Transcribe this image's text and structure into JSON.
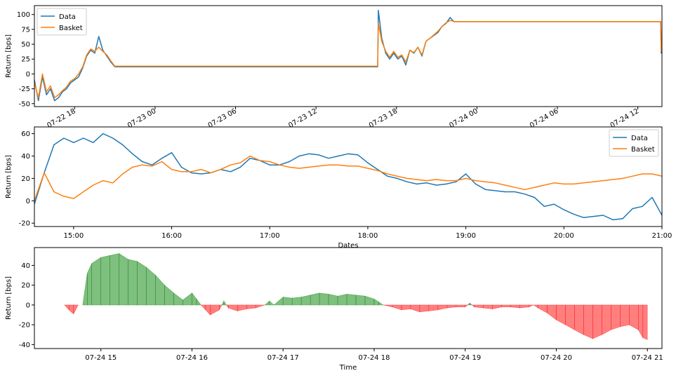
{
  "colors": {
    "data": "#1f77b4",
    "basket": "#ff7f0e",
    "positive": "#008000",
    "negative": "#ff0000"
  },
  "chart_data": [
    {
      "type": "line",
      "title": "",
      "xlabel": "",
      "ylabel": "Return [bps]",
      "x_unit": "hours from 07-22 15:00",
      "xlim": [
        0,
        46.8
      ],
      "ylim": [
        -55,
        115
      ],
      "yticks": [
        -50,
        -25,
        0,
        25,
        50,
        75,
        100
      ],
      "xticks": [
        {
          "v": 3,
          "label": "07-22 18"
        },
        {
          "v": 9,
          "label": "07-23 00"
        },
        {
          "v": 15,
          "label": "07-23 06"
        },
        {
          "v": 21,
          "label": "07-23 12"
        },
        {
          "v": 27,
          "label": "07-23 18"
        },
        {
          "v": 33,
          "label": "07-24 00"
        },
        {
          "v": 39,
          "label": "07-24 06"
        },
        {
          "v": 45,
          "label": "07-24 12"
        }
      ],
      "legend": "top-left",
      "series": [
        {
          "name": "Data",
          "key": "data",
          "x": [
            0,
            0.3,
            0.6,
            0.9,
            1.2,
            1.5,
            1.8,
            2.1,
            2.4,
            2.7,
            3.0,
            3.3,
            3.6,
            3.9,
            4.2,
            4.5,
            4.8,
            5.1,
            5.4,
            5.7,
            6.0,
            6.2,
            25.6,
            25.65,
            25.9,
            26.2,
            26.5,
            26.8,
            27.1,
            27.4,
            27.7,
            28.0,
            28.3,
            28.6,
            28.9,
            29.2,
            29.5,
            29.8,
            30.1,
            30.4,
            30.7,
            31.0,
            31.2,
            31.3,
            46.7,
            46.75,
            46.8
          ],
          "y": [
            -10,
            -45,
            -5,
            -35,
            -25,
            -45,
            -40,
            -30,
            -25,
            -15,
            -10,
            -5,
            10,
            30,
            40,
            35,
            63,
            40,
            30,
            20,
            12,
            12,
            12,
            107,
            60,
            35,
            25,
            35,
            25,
            30,
            15,
            40,
            35,
            45,
            30,
            55,
            60,
            65,
            70,
            80,
            85,
            95,
            90,
            88,
            88,
            35,
            40
          ]
        },
        {
          "name": "Basket",
          "key": "basket",
          "x": [
            0,
            0.3,
            0.6,
            0.9,
            1.2,
            1.5,
            1.8,
            2.1,
            2.4,
            2.7,
            3.0,
            3.3,
            3.6,
            3.9,
            4.2,
            4.5,
            4.8,
            5.1,
            5.4,
            5.7,
            6.0,
            6.2,
            25.6,
            25.65,
            25.9,
            26.2,
            26.5,
            26.8,
            27.1,
            27.4,
            27.7,
            28.0,
            28.3,
            28.6,
            28.9,
            29.2,
            29.5,
            29.8,
            30.1,
            30.4,
            30.7,
            31.0,
            31.2,
            31.3,
            46.7,
            46.75,
            46.8
          ],
          "y": [
            -15,
            -40,
            0,
            -30,
            -20,
            -40,
            -35,
            -28,
            -22,
            -12,
            -8,
            0,
            12,
            32,
            42,
            38,
            45,
            38,
            32,
            22,
            13,
            13,
            13,
            85,
            55,
            38,
            28,
            38,
            28,
            32,
            20,
            40,
            36,
            45,
            32,
            55,
            60,
            66,
            72,
            80,
            86,
            90,
            89,
            88,
            88,
            38,
            40
          ]
        }
      ]
    },
    {
      "type": "line",
      "title": "",
      "xlabel": "Dates",
      "ylabel": "Return [bps]",
      "x_unit": "hours of 07-24",
      "xlim": [
        14.6,
        21.0
      ],
      "ylim": [
        -23,
        66
      ],
      "yticks": [
        -20,
        0,
        20,
        40,
        60
      ],
      "xticks": [
        {
          "v": 15,
          "label": "15:00"
        },
        {
          "v": 16,
          "label": "16:00"
        },
        {
          "v": 17,
          "label": "17:00"
        },
        {
          "v": 18,
          "label": "18:00"
        },
        {
          "v": 19,
          "label": "19:00"
        },
        {
          "v": 20,
          "label": "20:00"
        },
        {
          "v": 21,
          "label": "21:00"
        }
      ],
      "legend": "top-right",
      "series": [
        {
          "name": "Data",
          "key": "data",
          "x": [
            14.6,
            14.7,
            14.8,
            14.9,
            15.0,
            15.1,
            15.2,
            15.3,
            15.4,
            15.5,
            15.6,
            15.7,
            15.8,
            15.9,
            16.0,
            16.1,
            16.2,
            16.3,
            16.4,
            16.5,
            16.6,
            16.7,
            16.8,
            16.9,
            17.0,
            17.1,
            17.2,
            17.3,
            17.4,
            17.5,
            17.6,
            17.7,
            17.8,
            17.9,
            18.0,
            18.1,
            18.2,
            18.3,
            18.4,
            18.5,
            18.6,
            18.7,
            18.8,
            18.9,
            19.0,
            19.1,
            19.2,
            19.3,
            19.4,
            19.5,
            19.6,
            19.7,
            19.8,
            19.9,
            20.0,
            20.1,
            20.2,
            20.3,
            20.4,
            20.5,
            20.6,
            20.7,
            20.8,
            20.9,
            21.0
          ],
          "y": [
            -3,
            25,
            50,
            56,
            52,
            56,
            52,
            60,
            56,
            50,
            42,
            35,
            32,
            38,
            43,
            30,
            25,
            24,
            25,
            28,
            26,
            30,
            38,
            36,
            32,
            32,
            35,
            40,
            42,
            41,
            38,
            40,
            42,
            41,
            34,
            28,
            22,
            20,
            17,
            15,
            16,
            14,
            15,
            17,
            24,
            15,
            10,
            9,
            8,
            8,
            6,
            3,
            -5,
            -3,
            -8,
            -12,
            -15,
            -14,
            -13,
            -17,
            -16,
            -7,
            -5,
            3,
            -13
          ]
        },
        {
          "name": "Basket",
          "key": "basket",
          "x": [
            14.6,
            14.7,
            14.8,
            14.9,
            15.0,
            15.1,
            15.2,
            15.3,
            15.4,
            15.5,
            15.6,
            15.7,
            15.8,
            15.9,
            16.0,
            16.1,
            16.2,
            16.3,
            16.4,
            16.5,
            16.6,
            16.7,
            16.8,
            16.9,
            17.0,
            17.1,
            17.2,
            17.3,
            17.4,
            17.5,
            17.6,
            17.7,
            17.8,
            17.9,
            18.0,
            18.1,
            18.2,
            18.3,
            18.4,
            18.5,
            18.6,
            18.7,
            18.8,
            18.9,
            19.0,
            19.1,
            19.2,
            19.3,
            19.4,
            19.5,
            19.6,
            19.7,
            19.8,
            19.9,
            20.0,
            20.1,
            20.2,
            20.3,
            20.4,
            20.5,
            20.6,
            20.7,
            20.8,
            20.9,
            21.0
          ],
          "y": [
            0,
            25,
            8,
            4,
            2,
            8,
            14,
            18,
            16,
            24,
            30,
            32,
            31,
            35,
            28,
            26,
            26,
            28,
            25,
            28,
            32,
            34,
            40,
            36,
            35,
            32,
            30,
            29,
            30,
            31,
            32,
            32,
            31,
            31,
            29,
            27,
            24,
            22,
            20,
            19,
            18,
            19,
            18,
            18,
            20,
            18,
            17,
            16,
            14,
            12,
            10,
            12,
            14,
            16,
            15,
            15,
            16,
            17,
            18,
            19,
            20,
            22,
            24,
            24,
            22
          ]
        }
      ]
    },
    {
      "type": "area",
      "title": "",
      "xlabel": "Time",
      "ylabel": "Return [bps]",
      "x_unit": "hours of 07-24",
      "xlim": [
        14.27,
        21.16
      ],
      "ylim": [
        -44,
        58
      ],
      "yticks": [
        -40,
        -20,
        0,
        20,
        40
      ],
      "xticks": [
        {
          "v": 15,
          "label": "07-24 15"
        },
        {
          "v": 16,
          "label": "07-24 16"
        },
        {
          "v": 17,
          "label": "07-24 17"
        },
        {
          "v": 18,
          "label": "07-24 18"
        },
        {
          "v": 19,
          "label": "07-24 19"
        },
        {
          "v": 20,
          "label": "07-24 20"
        },
        {
          "v": 21,
          "label": "07-24 21"
        }
      ],
      "positive_fill": "green",
      "negative_fill": "red",
      "x": [
        14.6,
        14.65,
        14.7,
        14.75,
        14.8,
        14.85,
        14.9,
        15.0,
        15.1,
        15.2,
        15.3,
        15.4,
        15.5,
        15.6,
        15.7,
        15.8,
        15.9,
        16.0,
        16.05,
        16.1,
        16.15,
        16.2,
        16.3,
        16.35,
        16.4,
        16.5,
        16.6,
        16.7,
        16.8,
        16.85,
        16.9,
        17.0,
        17.1,
        17.2,
        17.3,
        17.4,
        17.5,
        17.6,
        17.7,
        17.8,
        17.9,
        18.0,
        18.05,
        18.1,
        18.2,
        18.3,
        18.4,
        18.5,
        18.6,
        18.7,
        18.8,
        18.9,
        19.0,
        19.05,
        19.1,
        19.2,
        19.3,
        19.4,
        19.5,
        19.6,
        19.7,
        19.75,
        19.8,
        19.9,
        20.0,
        20.1,
        20.2,
        20.3,
        20.4,
        20.5,
        20.6,
        20.7,
        20.8,
        20.9,
        20.95,
        21.0
      ],
      "values": [
        0,
        -5,
        -9,
        0,
        0,
        32,
        42,
        48,
        50,
        52,
        46,
        44,
        38,
        30,
        20,
        12,
        5,
        12,
        6,
        0,
        -5,
        -10,
        -5,
        4,
        -3,
        -6,
        -4,
        -3,
        0,
        4,
        0,
        8,
        7,
        8,
        10,
        12,
        11,
        9,
        11,
        10,
        9,
        6,
        3,
        0,
        -2,
        -5,
        -4,
        -7,
        -6,
        -5,
        -3,
        -2,
        -2,
        2,
        -2,
        -3,
        -4,
        -2,
        -2,
        -3,
        -2,
        0,
        -3,
        -8,
        -15,
        -20,
        -25,
        -30,
        -34,
        -30,
        -25,
        -22,
        -20,
        -25,
        -33,
        -35
      ]
    }
  ]
}
